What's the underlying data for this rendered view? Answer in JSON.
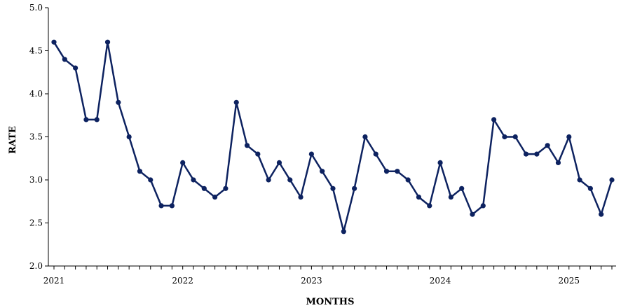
{
  "chart_data": {
    "type": "line",
    "xlabel": "MONTHS",
    "ylabel": "RATE",
    "ylim": [
      2.0,
      5.0
    ],
    "yticks": [
      2.0,
      2.5,
      3.0,
      3.5,
      4.0,
      4.5,
      5.0
    ],
    "ytick_labels": [
      "2.0",
      "2.5",
      "3.0",
      "3.5",
      "4.0",
      "4.5",
      "5.0"
    ],
    "xrange": [
      "2021-01",
      "2025-05"
    ],
    "xtick_labels": [
      {
        "month": "2021-01",
        "label": "2021"
      },
      {
        "month": "2022-01",
        "label": "2022"
      },
      {
        "month": "2023-01",
        "label": "2023"
      },
      {
        "month": "2024-01",
        "label": "2024"
      },
      {
        "month": "2025-01",
        "label": "2025"
      }
    ],
    "grid": false,
    "legend": "none",
    "series_color": "#0d2260",
    "series": [
      {
        "x": [
          "2021-01",
          "2021-02",
          "2021-03",
          "2021-04",
          "2021-05",
          "2021-06",
          "2021-07",
          "2021-08",
          "2021-09",
          "2021-10",
          "2021-11",
          "2021-12",
          "2022-01",
          "2022-02",
          "2022-03",
          "2022-04",
          "2022-05",
          "2022-06",
          "2022-07",
          "2022-08",
          "2022-09",
          "2022-10",
          "2022-11",
          "2022-12",
          "2023-01",
          "2023-02",
          "2023-03",
          "2023-04",
          "2023-05",
          "2023-06",
          "2023-07",
          "2023-08",
          "2023-09",
          "2023-10",
          "2023-11",
          "2023-12",
          "2024-01",
          "2024-02",
          "2024-03",
          "2024-04",
          "2024-05",
          "2024-06",
          "2024-07",
          "2024-08",
          "2024-09",
          "2024-10",
          "2024-11",
          "2024-12",
          "2025-01",
          "2025-02",
          "2025-03",
          "2025-04",
          "2025-05"
        ],
        "values": [
          4.6,
          4.4,
          4.3,
          3.7,
          3.7,
          4.6,
          3.9,
          3.5,
          3.1,
          3.0,
          2.7,
          2.7,
          3.2,
          3.0,
          2.9,
          2.8,
          2.9,
          3.9,
          3.4,
          3.3,
          3.0,
          3.2,
          3.0,
          2.8,
          3.3,
          3.1,
          2.9,
          2.4,
          2.9,
          3.5,
          3.3,
          3.1,
          3.1,
          3.0,
          2.8,
          2.7,
          3.2,
          2.8,
          2.9,
          2.6,
          2.7,
          3.7,
          3.5,
          3.5,
          3.3,
          3.3,
          3.4,
          3.2,
          3.5,
          3.0,
          2.9,
          2.6,
          3.0
        ]
      }
    ]
  }
}
